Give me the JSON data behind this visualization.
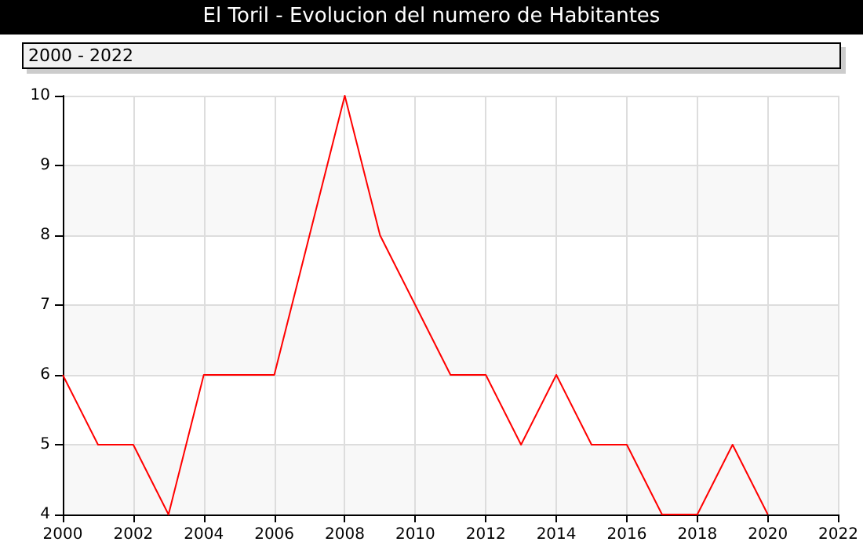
{
  "chart_data": {
    "type": "line",
    "title": "El Toril - Evolucion del numero de Habitantes",
    "subtitle": "2000 - 2022",
    "x": [
      2000,
      2001,
      2002,
      2003,
      2004,
      2005,
      2006,
      2007,
      2008,
      2009,
      2010,
      2011,
      2012,
      2013,
      2014,
      2015,
      2016,
      2017,
      2018,
      2019,
      2020
    ],
    "series": [
      {
        "color": "#ff0000",
        "values": [
          6,
          5,
          5,
          4,
          6,
          6,
          6,
          8,
          10,
          8,
          7,
          6,
          6,
          5,
          6,
          5,
          5,
          4,
          4,
          5,
          4
        ]
      }
    ],
    "xlim": [
      2000,
      2022
    ],
    "xticks": [
      2000,
      2002,
      2004,
      2006,
      2008,
      2010,
      2012,
      2014,
      2016,
      2018,
      2020,
      2022
    ],
    "ylim": [
      4,
      10
    ],
    "yticks": [
      4,
      5,
      6,
      7,
      8,
      9,
      10
    ],
    "grid": true,
    "marker": "none",
    "line_style": "solid"
  }
}
